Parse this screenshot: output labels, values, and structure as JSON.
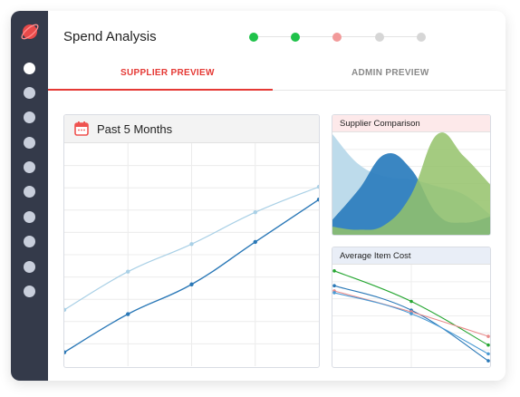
{
  "header": {
    "title": "Spend Analysis",
    "steps": [
      {
        "state": "complete",
        "color": "#1fc24a"
      },
      {
        "state": "complete",
        "color": "#1fc24a"
      },
      {
        "state": "current",
        "color": "#f29a9a"
      },
      {
        "state": "pending",
        "color": "#d6d6d6"
      },
      {
        "state": "pending",
        "color": "#d6d6d6"
      }
    ]
  },
  "tabs": [
    {
      "label": "SUPPLIER PREVIEW",
      "active": true
    },
    {
      "label": "ADMIN PREVIEW",
      "active": false
    }
  ],
  "sidebar": {
    "icons": [
      "logo-icon",
      "nav-dot",
      "nav-dot",
      "nav-dot",
      "nav-dot",
      "nav-dot",
      "nav-dot",
      "nav-dot",
      "nav-dot",
      "nav-dot",
      "nav-dot"
    ]
  },
  "main_chart": {
    "title": "Past 5 Months",
    "icon": "calendar-icon"
  },
  "supplier_panel": {
    "title": "Supplier Comparison"
  },
  "avg_panel": {
    "title": "Average Item Cost"
  },
  "colors": {
    "accent": "#e53935",
    "sidebar_bg": "#343a4a",
    "light_blue": "#a9d0e6",
    "dark_blue": "#2a78b7",
    "green": "#8fbf63",
    "red": "#e88b8b",
    "green_line": "#26a632"
  },
  "chart_data": [
    {
      "type": "line",
      "title": "Past 5 Months",
      "x": [
        0,
        1,
        2,
        3,
        4
      ],
      "series": [
        {
          "values": [
            4,
            22,
            36,
            56,
            76
          ]
        },
        {
          "values": [
            24,
            42,
            55,
            70,
            82
          ]
        }
      ],
      "ylim": [
        0,
        100
      ],
      "grid": true
    },
    {
      "type": "area",
      "title": "Supplier Comparison",
      "x": [
        0,
        1,
        2,
        3,
        4,
        5,
        6
      ],
      "series": [
        {
          "values": [
            100,
            70,
            58,
            55,
            48,
            40,
            20
          ]
        },
        {
          "values": [
            15,
            45,
            80,
            65,
            20,
            12,
            18
          ]
        },
        {
          "values": [
            8,
            5,
            10,
            40,
            100,
            78,
            50
          ]
        }
      ],
      "ylim": [
        0,
        100
      ]
    },
    {
      "type": "line",
      "title": "Average Item Cost",
      "x": [
        0,
        1,
        2
      ],
      "series": [
        {
          "values": [
            95,
            60,
            10
          ]
        },
        {
          "values": [
            78,
            50,
            -8
          ]
        },
        {
          "values": [
            72,
            48,
            20
          ]
        },
        {
          "values": [
            70,
            46,
            0
          ]
        }
      ],
      "ylim": [
        -10,
        100
      ]
    }
  ]
}
